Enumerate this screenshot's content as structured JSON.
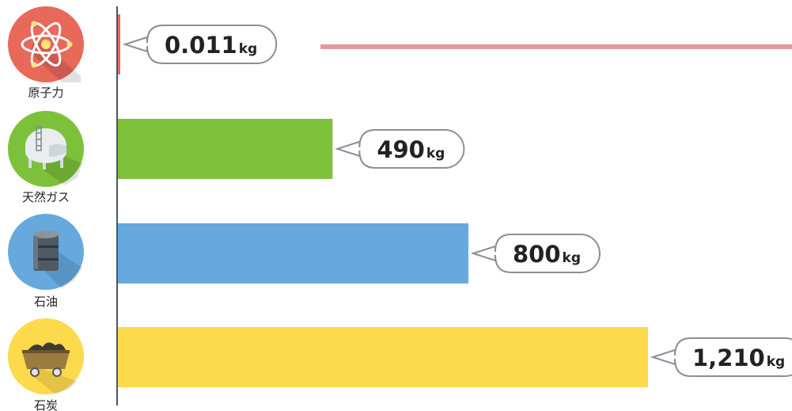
{
  "chart_data": {
    "type": "bar",
    "orientation": "horizontal",
    "categories": [
      "原子力",
      "天然ガス",
      "石油",
      "石炭"
    ],
    "values": [
      0.011,
      490,
      800,
      1210
    ],
    "value_labels": [
      "0.011",
      "490",
      "800",
      "1,210"
    ],
    "unit": "kg",
    "xlim": [
      0,
      1210
    ],
    "grid": false,
    "colors": [
      "#e8685a",
      "#7dc13a",
      "#65a9de",
      "#fdd94c"
    ],
    "icons": [
      {
        "name": "atom-icon",
        "bg": "#e8685a"
      },
      {
        "name": "gas-tank-icon",
        "bg": "#7dc13a"
      },
      {
        "name": "oil-barrel-icon",
        "bg": "#65a9de"
      },
      {
        "name": "coal-cart-icon",
        "bg": "#fdd94c"
      }
    ],
    "reference_line_color": "#e39a9c"
  }
}
